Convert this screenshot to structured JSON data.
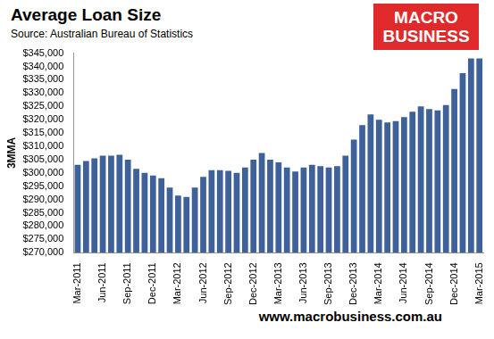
{
  "chart_data": {
    "type": "bar",
    "title": "Average Loan Size",
    "subtitle": "Source: Australian Bureau of Statistics",
    "y_label": "3MMA",
    "logo": [
      "MACRO",
      "BUSINESS"
    ],
    "footer": "www.macrobusiness.com.au",
    "categories": [
      "Mar-2011",
      null,
      null,
      "Jun-2011",
      null,
      null,
      "Sep-2011",
      null,
      null,
      "Dec-2011",
      null,
      null,
      "Mar-2012",
      null,
      null,
      "Jun-2012",
      null,
      null,
      "Sep-2012",
      null,
      null,
      "Dec-2012",
      null,
      null,
      "Mar-2013",
      null,
      null,
      "Jun-2013",
      null,
      null,
      "Sep-2013",
      null,
      null,
      "Dec-2013",
      null,
      null,
      "Mar-2014",
      null,
      null,
      "Jun-2014",
      null,
      null,
      "Sep-2014",
      null,
      null,
      "Dec-2014",
      null,
      null,
      "Mar-2015"
    ],
    "values": [
      303000,
      304500,
      305500,
      306500,
      306500,
      306800,
      305000,
      301500,
      300000,
      299000,
      298000,
      294500,
      291500,
      291000,
      294500,
      298500,
      301000,
      301000,
      300800,
      300000,
      302000,
      305000,
      307500,
      305000,
      304000,
      302000,
      300500,
      302000,
      303000,
      302500,
      302000,
      302500,
      306500,
      312500,
      318000,
      322000,
      320000,
      319000,
      319500,
      321000,
      323000,
      325000,
      324000,
      323500,
      325500,
      331500,
      337500,
      343000,
      343000
    ],
    "color": "#3f6199",
    "ylim": [
      270000,
      345000
    ],
    "yticks": [
      {
        "value": 270000,
        "label": "$270,000"
      },
      {
        "value": 275000,
        "label": "$275,000"
      },
      {
        "value": 280000,
        "label": "$280,000"
      },
      {
        "value": 285000,
        "label": "$285,000"
      },
      {
        "value": 290000,
        "label": "$290,000"
      },
      {
        "value": 295000,
        "label": "$295,000"
      },
      {
        "value": 300000,
        "label": "$300,000"
      },
      {
        "value": 305000,
        "label": "$305,000"
      },
      {
        "value": 310000,
        "label": "$310,000"
      },
      {
        "value": 315000,
        "label": "$315,000"
      },
      {
        "value": 320000,
        "label": "$320,000"
      },
      {
        "value": 325000,
        "label": "$325,000"
      },
      {
        "value": 330000,
        "label": "$330,000"
      },
      {
        "value": 335000,
        "label": "$335,000"
      },
      {
        "value": 340000,
        "label": "$340,000"
      },
      {
        "value": 345000,
        "label": "$345,000"
      }
    ],
    "grid": false
  }
}
